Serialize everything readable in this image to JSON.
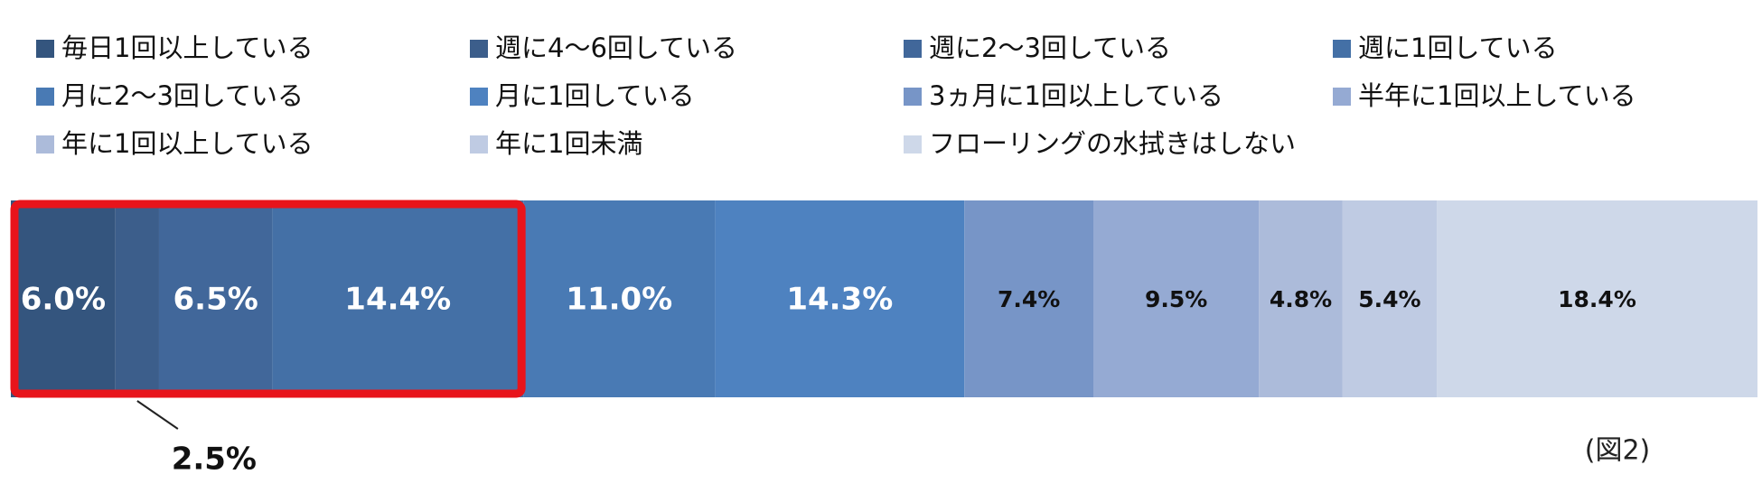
{
  "chart_data": {
    "type": "stacked_bar_100",
    "series": [
      {
        "name": "毎日1回以上している",
        "color": "#34557e",
        "values": [
          6.0
        ],
        "value_labels": [
          "6.0%"
        ]
      },
      {
        "name": "週に4～6回している",
        "color": "#3c5e8b",
        "values": [
          2.5
        ],
        "value_labels": [
          "2.5%"
        ]
      },
      {
        "name": "週に2～3回している",
        "color": "#41679a",
        "values": [
          6.5
        ],
        "value_labels": [
          "6.5%"
        ]
      },
      {
        "name": "週に1回している",
        "color": "#4470a6",
        "values": [
          14.4
        ],
        "value_labels": [
          "14.4%"
        ]
      },
      {
        "name": "月に2～3回している",
        "color": "#497ab4",
        "values": [
          11.0
        ],
        "value_labels": [
          "11.0%"
        ]
      },
      {
        "name": "月に1回している",
        "color": "#4e82c0",
        "values": [
          14.3
        ],
        "value_labels": [
          "14.3%"
        ]
      },
      {
        "name": "3ヵ月に1回以上している",
        "color": "#7795c7",
        "values": [
          7.4
        ],
        "value_labels": [
          "7.4%"
        ]
      },
      {
        "name": "半年に1回以上している",
        "color": "#95aad3",
        "values": [
          9.5
        ],
        "value_labels": [
          "9.5%"
        ]
      },
      {
        "name": "年に1回以上している",
        "color": "#acbbda",
        "values": [
          4.8
        ],
        "value_labels": [
          "4.8%"
        ]
      },
      {
        "name": "年に1回未満",
        "color": "#bfcbe3",
        "values": [
          5.4
        ],
        "value_labels": [
          "5.4%"
        ]
      },
      {
        "name": "フローリングの水拭きはしない",
        "color": "#ced8e9",
        "values": [
          18.4
        ],
        "value_labels": [
          "18.4%"
        ]
      }
    ],
    "annotation": "(図2)"
  }
}
